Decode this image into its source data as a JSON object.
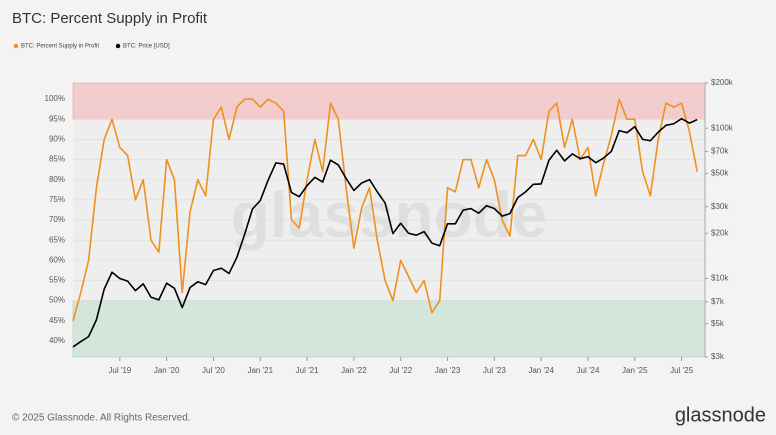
{
  "chart_data": {
    "type": "line",
    "title": "BTC: Percent Supply in Profit",
    "watermark": "glassnode",
    "footer": "© 2025 Glassnode. All Rights Reserved.",
    "logo": "glassnode",
    "x": [
      "2019-01",
      "2019-02",
      "2019-03",
      "2019-04",
      "2019-05",
      "2019-06",
      "2019-07",
      "2019-08",
      "2019-09",
      "2019-10",
      "2019-11",
      "2019-12",
      "2020-01",
      "2020-02",
      "2020-03",
      "2020-04",
      "2020-05",
      "2020-06",
      "2020-07",
      "2020-08",
      "2020-09",
      "2020-10",
      "2020-11",
      "2020-12",
      "2021-01",
      "2021-02",
      "2021-03",
      "2021-04",
      "2021-05",
      "2021-06",
      "2021-07",
      "2021-08",
      "2021-09",
      "2021-10",
      "2021-11",
      "2021-12",
      "2022-01",
      "2022-02",
      "2022-03",
      "2022-04",
      "2022-05",
      "2022-06",
      "2022-07",
      "2022-08",
      "2022-09",
      "2022-10",
      "2022-11",
      "2022-12",
      "2023-01",
      "2023-02",
      "2023-03",
      "2023-04",
      "2023-05",
      "2023-06",
      "2023-07",
      "2023-08",
      "2023-09",
      "2023-10",
      "2023-11",
      "2023-12",
      "2024-01",
      "2024-02",
      "2024-03",
      "2024-04",
      "2024-05",
      "2024-06",
      "2024-07",
      "2024-08",
      "2024-09",
      "2024-10",
      "2024-11",
      "2024-12",
      "2025-01",
      "2025-02",
      "2025-03",
      "2025-04",
      "2025-05",
      "2025-06",
      "2025-07",
      "2025-08",
      "2025-09"
    ],
    "xlim": [
      "2019-01",
      "2025-10"
    ],
    "xticks": [
      {
        "value": "2019-07",
        "label": "Jul '19"
      },
      {
        "value": "2020-01",
        "label": "Jan '20"
      },
      {
        "value": "2020-07",
        "label": "Jul '20"
      },
      {
        "value": "2021-01",
        "label": "Jan '21"
      },
      {
        "value": "2021-07",
        "label": "Jul '21"
      },
      {
        "value": "2022-01",
        "label": "Jan '22"
      },
      {
        "value": "2022-07",
        "label": "Jul '22"
      },
      {
        "value": "2023-01",
        "label": "Jan '23"
      },
      {
        "value": "2023-07",
        "label": "Jul '23"
      },
      {
        "value": "2024-01",
        "label": "Jan '24"
      },
      {
        "value": "2024-07",
        "label": "Jul '24"
      },
      {
        "value": "2025-01",
        "label": "Jan '25"
      },
      {
        "value": "2025-07",
        "label": "Jul '25"
      }
    ],
    "ylim": [
      36,
      104
    ],
    "yticks": [
      {
        "value": 40,
        "label": "40%"
      },
      {
        "value": 45,
        "label": "45%"
      },
      {
        "value": 50,
        "label": "50%"
      },
      {
        "value": 55,
        "label": "55%"
      },
      {
        "value": 60,
        "label": "60%"
      },
      {
        "value": 65,
        "label": "65%"
      },
      {
        "value": 70,
        "label": "70%"
      },
      {
        "value": 75,
        "label": "75%"
      },
      {
        "value": 80,
        "label": "80%"
      },
      {
        "value": 85,
        "label": "85%"
      },
      {
        "value": 90,
        "label": "90%"
      },
      {
        "value": 95,
        "label": "95%"
      },
      {
        "value": 100,
        "label": "100%"
      }
    ],
    "y2lim": [
      3000,
      200000
    ],
    "y2scale": "log",
    "y2ticks": [
      {
        "value": 3000,
        "label": "$3k"
      },
      {
        "value": 5000,
        "label": "$5k"
      },
      {
        "value": 7000,
        "label": "$7k"
      },
      {
        "value": 10000,
        "label": "$10k"
      },
      {
        "value": 20000,
        "label": "$20k"
      },
      {
        "value": 30000,
        "label": "$30k"
      },
      {
        "value": 50000,
        "label": "$50k"
      },
      {
        "value": 70000,
        "label": "$70k"
      },
      {
        "value": 100000,
        "label": "$100k"
      },
      {
        "value": 200000,
        "label": "$200k"
      }
    ],
    "grid": true,
    "legend": "top-left",
    "bands": [
      {
        "from": 95,
        "to": 104,
        "color": "#f2cccc"
      },
      {
        "from": 36,
        "to": 50,
        "color": "#d3e6da"
      }
    ],
    "series": [
      {
        "name": "BTC: Percent Supply in Profit",
        "color": "#f0901e",
        "values": [
          45,
          52,
          60,
          78,
          90,
          95,
          88,
          86,
          75,
          80,
          65,
          62,
          85,
          80,
          52,
          72,
          80,
          76,
          95,
          98,
          90,
          98,
          100,
          100,
          98,
          100,
          99,
          97,
          70,
          68,
          80,
          90,
          82,
          99,
          95,
          78,
          63,
          73,
          78,
          65,
          55,
          50,
          60,
          56,
          52,
          55,
          47,
          50,
          78,
          77,
          85,
          85,
          78,
          85,
          80,
          70,
          66,
          86,
          86,
          90,
          85,
          97,
          99,
          88,
          95,
          85,
          88,
          76,
          84,
          91,
          100,
          95,
          95,
          82,
          76,
          90,
          99,
          98,
          99,
          92,
          82
        ]
      },
      {
        "name": "BTC: Price [USD]",
        "color": "#000000",
        "axis": "y2",
        "values": [
          3500,
          3800,
          4100,
          5300,
          8500,
          11000,
          10000,
          9600,
          8300,
          9200,
          7500,
          7200,
          9300,
          8600,
          6400,
          8700,
          9500,
          9100,
          11300,
          11700,
          10800,
          13800,
          19700,
          29000,
          33000,
          45000,
          58800,
          57700,
          37300,
          35000,
          41500,
          47100,
          43800,
          61300,
          57000,
          46300,
          38500,
          43200,
          45500,
          37700,
          31800,
          19900,
          23300,
          20000,
          19400,
          20500,
          17200,
          16500,
          23100,
          23100,
          28500,
          29200,
          27200,
          30500,
          29200,
          26000,
          27000,
          34500,
          37700,
          42300,
          42600,
          61200,
          71300,
          60600,
          67500,
          62700,
          64600,
          59000,
          63300,
          70200,
          96400,
          93400,
          102400,
          84400,
          82500,
          94200,
          104600,
          107100,
          115700,
          108200,
          114000
        ]
      }
    ]
  }
}
